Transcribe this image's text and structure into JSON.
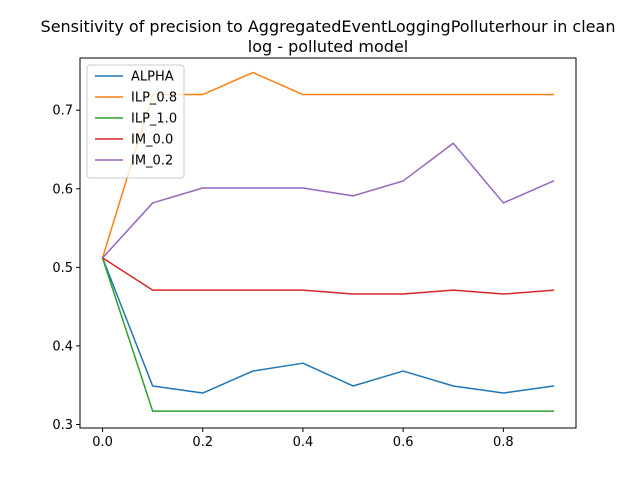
{
  "chart_data": {
    "type": "line",
    "title": "Sensitivity of precision to AggregatedEventLoggingPolluterhour in clean log - polluted model",
    "title_lines": [
      "Sensitivity of precision to AggregatedEventLoggingPolluterhour in clean",
      "log - polluted model"
    ],
    "xlabel": "",
    "ylabel": "",
    "x": [
      0.0,
      0.1,
      0.2,
      0.3,
      0.4,
      0.5,
      0.6,
      0.7,
      0.8,
      0.9
    ],
    "xlim": [
      -0.045,
      0.945
    ],
    "ylim": [
      0.2955,
      0.7665
    ],
    "xticks": [
      0.0,
      0.2,
      0.4,
      0.6,
      0.8
    ],
    "xtick_labels": [
      "0.0",
      "0.2",
      "0.4",
      "0.6",
      "0.8"
    ],
    "yticks": [
      0.3,
      0.4,
      0.5,
      0.6,
      0.7
    ],
    "ytick_labels": [
      "0.3",
      "0.4",
      "0.5",
      "0.6",
      "0.7"
    ],
    "grid": false,
    "legend_position": "top-left",
    "series": [
      {
        "name": "ALPHA",
        "color": "#1f77b4",
        "values": [
          0.512,
          0.349,
          0.34,
          0.368,
          0.378,
          0.349,
          0.368,
          0.349,
          0.34,
          0.349
        ]
      },
      {
        "name": "ILP_0.8",
        "color": "#ff7f0e",
        "values": [
          0.512,
          0.72,
          0.72,
          0.748,
          0.72,
          0.72,
          0.72,
          0.72,
          0.72,
          0.72
        ]
      },
      {
        "name": "ILP_1.0",
        "color": "#2ca02c",
        "values": [
          0.512,
          0.317,
          0.317,
          0.317,
          0.317,
          0.317,
          0.317,
          0.317,
          0.317,
          0.317
        ]
      },
      {
        "name": "IM_0.0",
        "color": "#d62728",
        "values": [
          0.512,
          0.471,
          0.471,
          0.471,
          0.471,
          0.466,
          0.466,
          0.471,
          0.466,
          0.471
        ]
      },
      {
        "name": "IM_0.2",
        "color": "#9467bd",
        "values": [
          0.512,
          0.582,
          0.601,
          0.601,
          0.601,
          0.591,
          0.61,
          0.658,
          0.582,
          0.61
        ]
      }
    ]
  }
}
